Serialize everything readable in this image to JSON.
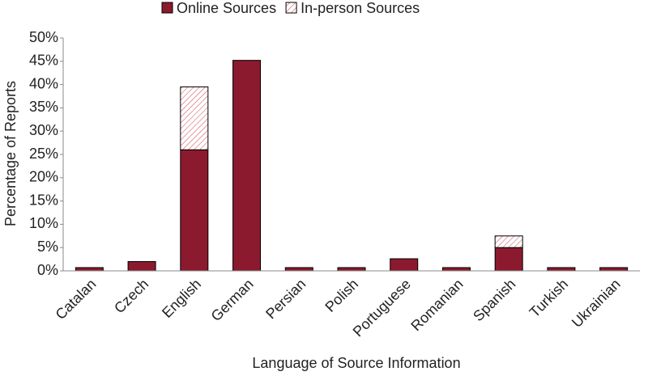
{
  "chart_data": {
    "type": "stacked_bar",
    "x_label": "Language of Source Information",
    "y_label": "Percentage of Reports",
    "categories": [
      "Catalan",
      "Czech",
      "English",
      "German",
      "Persian",
      "Polish",
      "Portuguese",
      "Romanian",
      "Spanish",
      "Turkish",
      "Ukrainian"
    ],
    "series": [
      {
        "name": "Online Sources",
        "color": "#8b1a2e",
        "values": [
          0.7,
          2,
          26,
          45.2,
          0.7,
          0.7,
          2.6,
          0.7,
          5,
          0.7,
          0.7
        ]
      },
      {
        "name": "In-person Sources",
        "color": "#d0404f",
        "values": [
          0,
          0,
          13.5,
          0,
          0,
          0,
          0,
          0,
          2.5,
          0,
          0
        ]
      }
    ],
    "ylim": [
      0,
      50
    ],
    "yticks": [
      {
        "value": 0,
        "label": "0%"
      },
      {
        "value": 5,
        "label": "5%"
      },
      {
        "value": 10,
        "label": "10%"
      },
      {
        "value": 15,
        "label": "15%"
      },
      {
        "value": 20,
        "label": "20%"
      },
      {
        "value": 25,
        "label": "25%"
      },
      {
        "value": 30,
        "label": "30%"
      },
      {
        "value": 35,
        "label": "35%"
      },
      {
        "value": 40,
        "label": "40%"
      },
      {
        "value": 45,
        "label": "45%"
      },
      {
        "value": 50,
        "label": "50%"
      }
    ],
    "grid": false,
    "legend": "top"
  }
}
